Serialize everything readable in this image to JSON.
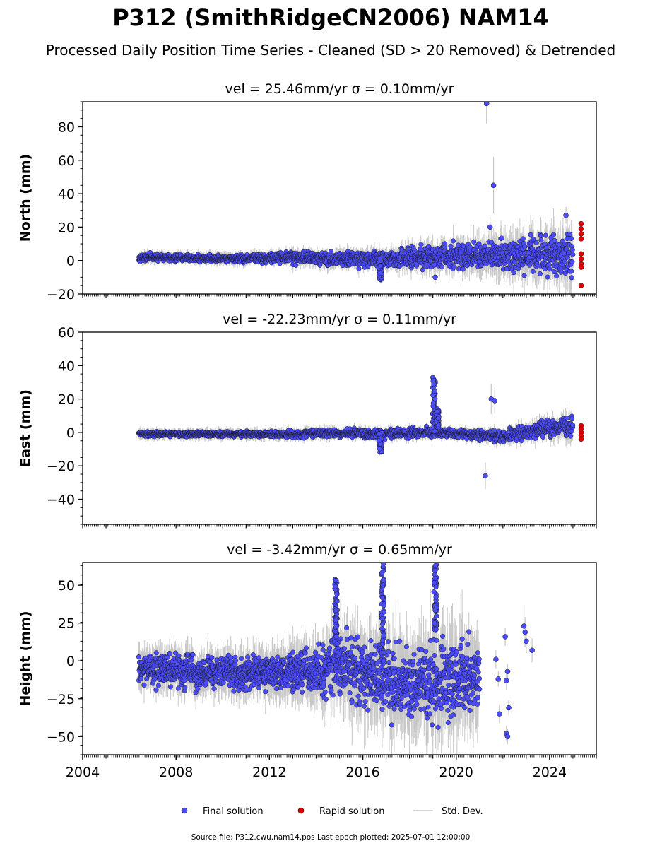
{
  "figure": {
    "title": "P312 (SmithRidgeCN2006) NAM14",
    "subtitle": "Processed Daily Position Time Series - Cleaned (SD > 20 Removed) & Detrended",
    "footer": "Source file: P312.cwu.nam14.pos  Last epoch plotted: 2025-07-01 12:00:00"
  },
  "legend": {
    "final": "Final solution",
    "rapid": "Rapid solution",
    "std": "Std. Dev."
  },
  "colors": {
    "final": "#4b4bff",
    "rapid": "#e00000",
    "std": "#c8c8c8",
    "edge": "#1a1a1a"
  },
  "chart_data": [
    {
      "type": "scatter",
      "title": "vel = 25.46mm/yr   σ = 0.10mm/yr",
      "ylabel": "North (mm)",
      "xlim": [
        2004,
        2026
      ],
      "ylim": [
        -20,
        95
      ],
      "yticks": [
        -20,
        0,
        20,
        40,
        60,
        80
      ],
      "show_xticklabels": false,
      "envelope": [
        {
          "x": 2006.4,
          "lo": -1,
          "hi": 5
        },
        {
          "x": 2010,
          "lo": -2,
          "hi": 4
        },
        {
          "x": 2013,
          "lo": -3,
          "hi": 7
        },
        {
          "x": 2015,
          "lo": -5,
          "hi": 7
        },
        {
          "x": 2017,
          "lo": -6,
          "hi": 8
        },
        {
          "x": 2019,
          "lo": -7,
          "hi": 12
        },
        {
          "x": 2021,
          "lo": -9,
          "hi": 14
        },
        {
          "x": 2023,
          "lo": -12,
          "hi": 18
        },
        {
          "x": 2025,
          "lo": -14,
          "hi": 24
        }
      ],
      "events": [
        {
          "x": 2016.75,
          "lo": -12,
          "hi": 2
        }
      ],
      "outliers": [
        {
          "x": 2021.3,
          "y": 94,
          "err": 12
        },
        {
          "x": 2021.6,
          "y": 45,
          "err": 17
        },
        {
          "x": 2021.45,
          "y": 20,
          "err": 6
        },
        {
          "x": 2024.7,
          "y": 27,
          "err": 5
        },
        {
          "x": 2019.1,
          "y": -10,
          "err": 4
        }
      ],
      "rapid": [
        {
          "x": 2025.35,
          "y": 22
        },
        {
          "x": 2025.35,
          "y": 19
        },
        {
          "x": 2025.35,
          "y": 16
        },
        {
          "x": 2025.35,
          "y": 13
        },
        {
          "x": 2025.35,
          "y": 4
        },
        {
          "x": 2025.35,
          "y": 1
        },
        {
          "x": 2025.35,
          "y": -2
        },
        {
          "x": 2025.35,
          "y": -4
        },
        {
          "x": 2025.35,
          "y": -15
        }
      ]
    },
    {
      "type": "scatter",
      "title": "vel = -22.23mm/yr   σ = 0.11mm/yr",
      "ylabel": "East (mm)",
      "xlim": [
        2004,
        2026
      ],
      "ylim": [
        -55,
        60
      ],
      "yticks": [
        -40,
        -20,
        0,
        20,
        40,
        60
      ],
      "show_xticklabels": false,
      "envelope": [
        {
          "x": 2006.4,
          "lo": -3,
          "hi": 1
        },
        {
          "x": 2010,
          "lo": -3,
          "hi": 1
        },
        {
          "x": 2013,
          "lo": -4,
          "hi": 2
        },
        {
          "x": 2015,
          "lo": -4,
          "hi": 3
        },
        {
          "x": 2017,
          "lo": -5,
          "hi": 3
        },
        {
          "x": 2018.5,
          "lo": -4,
          "hi": 4
        },
        {
          "x": 2020,
          "lo": -4,
          "hi": 3
        },
        {
          "x": 2022,
          "lo": -8,
          "hi": 2
        },
        {
          "x": 2024,
          "lo": -4,
          "hi": 10
        },
        {
          "x": 2025,
          "lo": -6,
          "hi": 12
        }
      ],
      "events": [
        {
          "x": 2016.75,
          "lo": -12,
          "hi": 0
        },
        {
          "x": 2019.05,
          "lo": 0,
          "hi": 33
        },
        {
          "x": 2019.2,
          "lo": 2,
          "hi": 14
        }
      ],
      "outliers": [
        {
          "x": 2021.25,
          "y": -26,
          "err": 8
        },
        {
          "x": 2021.5,
          "y": 20,
          "err": 9
        },
        {
          "x": 2021.65,
          "y": 19,
          "err": 8
        }
      ],
      "rapid": [
        {
          "x": 2025.35,
          "y": 4
        },
        {
          "x": 2025.35,
          "y": 2
        },
        {
          "x": 2025.35,
          "y": 0
        },
        {
          "x": 2025.35,
          "y": -2
        },
        {
          "x": 2025.35,
          "y": -4
        }
      ]
    },
    {
      "type": "scatter",
      "title": "vel = -3.42mm/yr   σ = 0.65mm/yr",
      "ylabel": "Height (mm)",
      "xlim": [
        2004,
        2026
      ],
      "ylim": [
        -62,
        65
      ],
      "yticks": [
        -50,
        -25,
        0,
        25,
        50
      ],
      "xticks": [
        2004,
        2008,
        2012,
        2016,
        2020,
        2024
      ],
      "show_xticklabels": true,
      "envelope": [
        {
          "x": 2006.4,
          "lo": -20,
          "hi": 8
        },
        {
          "x": 2009,
          "lo": -22,
          "hi": 8
        },
        {
          "x": 2012,
          "lo": -24,
          "hi": 10
        },
        {
          "x": 2014,
          "lo": -28,
          "hi": 15
        },
        {
          "x": 2015,
          "lo": -32,
          "hi": 25
        },
        {
          "x": 2016,
          "lo": -38,
          "hi": 25
        },
        {
          "x": 2017,
          "lo": -45,
          "hi": 20
        },
        {
          "x": 2018,
          "lo": -50,
          "hi": 18
        },
        {
          "x": 2019,
          "lo": -52,
          "hi": 22
        },
        {
          "x": 2020,
          "lo": -48,
          "hi": 25
        },
        {
          "x": 2021,
          "lo": -40,
          "hi": 20
        }
      ],
      "events": [
        {
          "x": 2014.85,
          "lo": 10,
          "hi": 54
        },
        {
          "x": 2016.85,
          "lo": 0,
          "hi": 65
        },
        {
          "x": 2019.1,
          "lo": 20,
          "hi": 64
        }
      ],
      "outliers": [
        {
          "x": 2021.7,
          "y": 1,
          "err": 6
        },
        {
          "x": 2021.8,
          "y": -12,
          "err": 5
        },
        {
          "x": 2021.85,
          "y": -35,
          "err": 6
        },
        {
          "x": 2022.1,
          "y": 16,
          "err": 6
        },
        {
          "x": 2022.15,
          "y": -13,
          "err": 6
        },
        {
          "x": 2022.2,
          "y": -7,
          "err": 5
        },
        {
          "x": 2022.25,
          "y": -31,
          "err": 5
        },
        {
          "x": 2022.15,
          "y": -48,
          "err": 5
        },
        {
          "x": 2022.2,
          "y": -50,
          "err": 5
        },
        {
          "x": 2022.9,
          "y": 23,
          "err": 14
        },
        {
          "x": 2022.95,
          "y": 19,
          "err": 10
        },
        {
          "x": 2023.0,
          "y": 13,
          "err": 8
        },
        {
          "x": 2023.25,
          "y": 7,
          "err": 8
        }
      ],
      "rapid": []
    }
  ]
}
